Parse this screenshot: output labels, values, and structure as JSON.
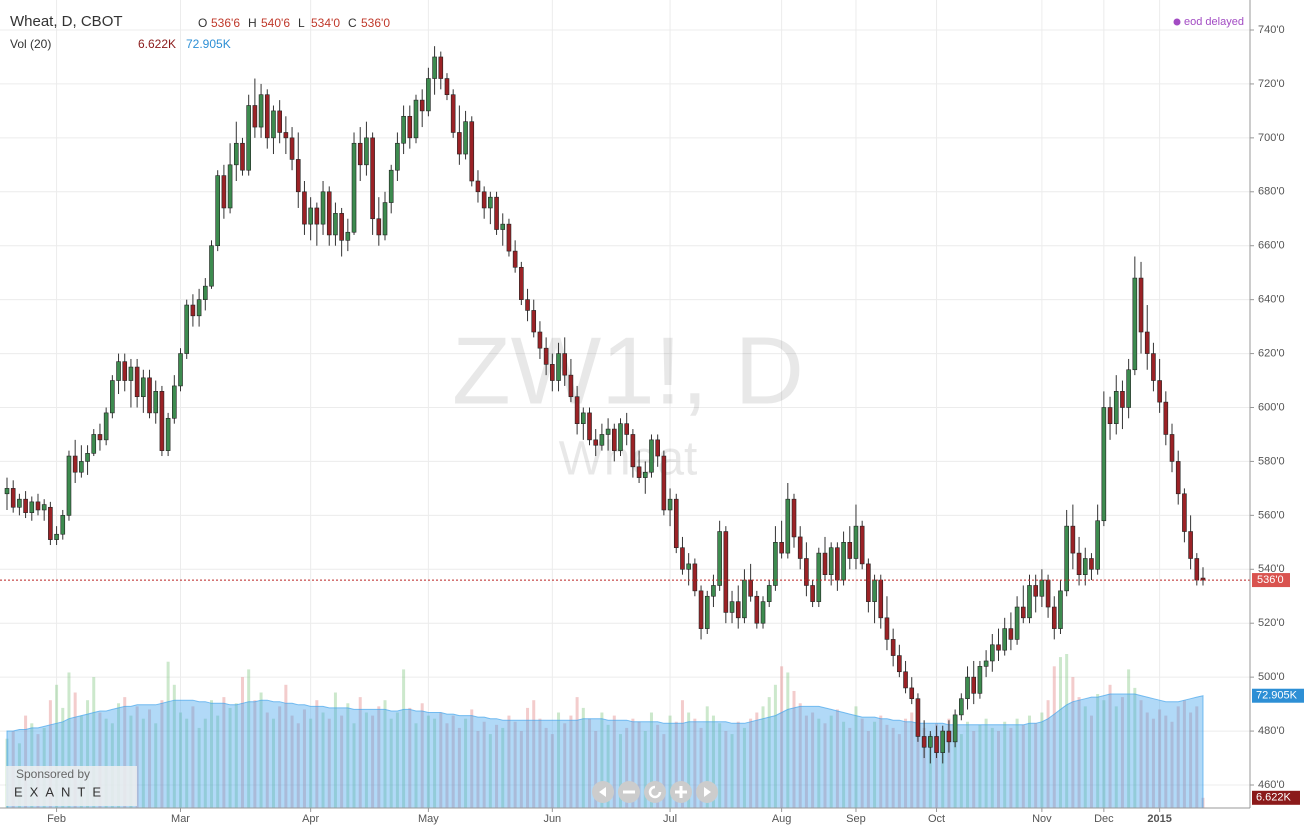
{
  "chart_data": {
    "type": "candlestick",
    "title": "Wheat, D, CBOT",
    "volume_title": "Vol (20)",
    "watermark": "ZW1!, D",
    "watermark_sub": "Wheat",
    "status": "eod delayed",
    "sponsor": {
      "caption": "Sponsored by",
      "name": "EXANTE"
    },
    "ohlc_names": [
      "O",
      "H",
      "L",
      "C"
    ],
    "last_labels": [
      "536'6",
      "540'6",
      "534'0",
      "536'0"
    ],
    "volume_last_label": "6.622K",
    "volume_ma_last_label": "72.905K",
    "up_color": "#3d8b4f",
    "down_color": "#9b2226",
    "ylim": [
      460,
      740
    ],
    "yticks": [
      {
        "value": 460,
        "label": "460'0"
      },
      {
        "value": 480,
        "label": "480'0"
      },
      {
        "value": 500,
        "label": "500'0"
      },
      {
        "value": 520,
        "label": "520'0"
      },
      {
        "value": 540,
        "label": "540'0"
      },
      {
        "value": 560,
        "label": "560'0"
      },
      {
        "value": 580,
        "label": "580'0"
      },
      {
        "value": 600,
        "label": "600'0"
      },
      {
        "value": 620,
        "label": "620'0"
      },
      {
        "value": 640,
        "label": "640'0"
      },
      {
        "value": 660,
        "label": "660'0"
      },
      {
        "value": 680,
        "label": "680'0"
      },
      {
        "value": 700,
        "label": "700'0"
      },
      {
        "value": 720,
        "label": "720'0"
      },
      {
        "value": 740,
        "label": "740'0"
      }
    ],
    "xticks": [
      {
        "value": 8,
        "label": "Feb"
      },
      {
        "value": 28,
        "label": "Mar"
      },
      {
        "value": 49,
        "label": "Apr"
      },
      {
        "value": 68,
        "label": "May"
      },
      {
        "value": 88,
        "label": "Jun"
      },
      {
        "value": 107,
        "label": "Jul"
      },
      {
        "value": 125,
        "label": "Aug"
      },
      {
        "value": 137,
        "label": "Sep"
      },
      {
        "value": 150,
        "label": "Oct"
      },
      {
        "value": 167,
        "label": "Nov"
      },
      {
        "value": 177,
        "label": "Dec"
      },
      {
        "value": 186,
        "label": "2015"
      }
    ],
    "grid": true,
    "volume_ylim": [
      0,
      100
    ],
    "ohlc": [
      [
        568,
        574,
        562,
        570
      ],
      [
        570,
        573,
        561,
        563
      ],
      [
        563,
        568,
        560,
        566
      ],
      [
        566,
        569,
        559,
        561
      ],
      [
        561,
        567,
        558,
        565
      ],
      [
        565,
        568,
        560,
        562
      ],
      [
        562,
        566,
        558,
        564
      ],
      [
        563,
        565,
        549,
        551
      ],
      [
        551,
        556,
        549,
        553
      ],
      [
        553,
        562,
        551,
        560
      ],
      [
        560,
        584,
        558,
        582
      ],
      [
        582,
        588,
        572,
        576
      ],
      [
        576,
        586,
        574,
        580
      ],
      [
        580,
        586,
        575,
        583
      ],
      [
        583,
        592,
        582,
        590
      ],
      [
        590,
        594,
        584,
        588
      ],
      [
        588,
        600,
        586,
        598
      ],
      [
        598,
        612,
        596,
        610
      ],
      [
        610,
        620,
        605,
        617
      ],
      [
        617,
        620,
        606,
        610
      ],
      [
        610,
        618,
        600,
        615
      ],
      [
        615,
        618,
        600,
        604
      ],
      [
        604,
        614,
        598,
        611
      ],
      [
        611,
        614,
        596,
        598
      ],
      [
        598,
        610,
        594,
        606
      ],
      [
        606,
        608,
        582,
        584
      ],
      [
        584,
        598,
        582,
        596
      ],
      [
        596,
        612,
        594,
        608
      ],
      [
        608,
        622,
        606,
        620
      ],
      [
        620,
        640,
        618,
        638
      ],
      [
        638,
        642,
        630,
        634
      ],
      [
        634,
        644,
        630,
        640
      ],
      [
        640,
        648,
        636,
        645
      ],
      [
        645,
        662,
        644,
        660
      ],
      [
        660,
        688,
        658,
        686
      ],
      [
        686,
        690,
        670,
        674
      ],
      [
        674,
        698,
        672,
        690
      ],
      [
        690,
        706,
        684,
        698
      ],
      [
        698,
        700,
        686,
        688
      ],
      [
        688,
        716,
        686,
        712
      ],
      [
        712,
        722,
        700,
        704
      ],
      [
        704,
        720,
        700,
        716
      ],
      [
        716,
        718,
        696,
        700
      ],
      [
        700,
        712,
        694,
        710
      ],
      [
        710,
        714,
        698,
        702
      ],
      [
        702,
        708,
        694,
        700
      ],
      [
        700,
        704,
        688,
        692
      ],
      [
        692,
        702,
        674,
        680
      ],
      [
        680,
        684,
        664,
        668
      ],
      [
        668,
        678,
        662,
        674
      ],
      [
        674,
        676,
        660,
        668
      ],
      [
        668,
        684,
        664,
        680
      ],
      [
        680,
        682,
        660,
        664
      ],
      [
        664,
        676,
        660,
        672
      ],
      [
        672,
        674,
        656,
        662
      ],
      [
        662,
        670,
        658,
        665
      ],
      [
        665,
        702,
        664,
        698
      ],
      [
        698,
        704,
        684,
        690
      ],
      [
        690,
        706,
        686,
        700
      ],
      [
        700,
        702,
        664,
        670
      ],
      [
        670,
        678,
        660,
        664
      ],
      [
        664,
        680,
        662,
        676
      ],
      [
        676,
        690,
        672,
        688
      ],
      [
        688,
        702,
        684,
        698
      ],
      [
        698,
        712,
        694,
        708
      ],
      [
        708,
        712,
        696,
        700
      ],
      [
        700,
        716,
        698,
        714
      ],
      [
        714,
        718,
        704,
        710
      ],
      [
        710,
        726,
        708,
        722
      ],
      [
        722,
        734,
        716,
        730
      ],
      [
        730,
        732,
        718,
        722
      ],
      [
        722,
        724,
        714,
        716
      ],
      [
        716,
        718,
        700,
        702
      ],
      [
        702,
        712,
        690,
        694
      ],
      [
        694,
        710,
        692,
        706
      ],
      [
        706,
        708,
        682,
        684
      ],
      [
        684,
        688,
        676,
        680
      ],
      [
        680,
        682,
        670,
        674
      ],
      [
        674,
        680,
        668,
        678
      ],
      [
        678,
        680,
        664,
        666
      ],
      [
        666,
        672,
        660,
        668
      ],
      [
        668,
        670,
        656,
        658
      ],
      [
        658,
        662,
        650,
        652
      ],
      [
        652,
        654,
        638,
        640
      ],
      [
        640,
        644,
        632,
        636
      ],
      [
        636,
        640,
        626,
        628
      ],
      [
        628,
        632,
        618,
        622
      ],
      [
        622,
        626,
        612,
        616
      ],
      [
        616,
        620,
        606,
        610
      ],
      [
        610,
        624,
        606,
        620
      ],
      [
        620,
        626,
        608,
        612
      ],
      [
        612,
        618,
        602,
        604
      ],
      [
        604,
        608,
        590,
        594
      ],
      [
        594,
        600,
        588,
        598
      ],
      [
        598,
        600,
        586,
        588
      ],
      [
        588,
        592,
        582,
        586
      ],
      [
        586,
        594,
        584,
        590
      ],
      [
        590,
        596,
        584,
        592
      ],
      [
        592,
        594,
        580,
        584
      ],
      [
        584,
        596,
        582,
        594
      ],
      [
        594,
        598,
        586,
        590
      ],
      [
        590,
        592,
        574,
        578
      ],
      [
        578,
        584,
        572,
        574
      ],
      [
        574,
        580,
        568,
        576
      ],
      [
        576,
        590,
        574,
        588
      ],
      [
        588,
        590,
        578,
        582
      ],
      [
        582,
        584,
        560,
        562
      ],
      [
        562,
        570,
        556,
        566
      ],
      [
        566,
        568,
        546,
        548
      ],
      [
        548,
        552,
        538,
        540
      ],
      [
        540,
        546,
        534,
        542
      ],
      [
        542,
        544,
        530,
        532
      ],
      [
        532,
        534,
        514,
        518
      ],
      [
        518,
        532,
        516,
        530
      ],
      [
        530,
        538,
        526,
        534
      ],
      [
        534,
        558,
        532,
        554
      ],
      [
        554,
        556,
        520,
        524
      ],
      [
        524,
        532,
        520,
        528
      ],
      [
        528,
        534,
        518,
        522
      ],
      [
        522,
        540,
        520,
        536
      ],
      [
        536,
        542,
        528,
        530
      ],
      [
        530,
        532,
        518,
        520
      ],
      [
        520,
        530,
        518,
        528
      ],
      [
        528,
        536,
        526,
        534
      ],
      [
        534,
        556,
        532,
        550
      ],
      [
        550,
        558,
        544,
        546
      ],
      [
        546,
        572,
        544,
        566
      ],
      [
        566,
        568,
        548,
        552
      ],
      [
        552,
        556,
        540,
        544
      ],
      [
        544,
        550,
        530,
        534
      ],
      [
        534,
        536,
        526,
        528
      ],
      [
        528,
        548,
        526,
        546
      ],
      [
        546,
        552,
        536,
        538
      ],
      [
        538,
        550,
        534,
        548
      ],
      [
        548,
        550,
        532,
        536
      ],
      [
        536,
        554,
        534,
        550
      ],
      [
        550,
        556,
        540,
        544
      ],
      [
        544,
        564,
        540,
        556
      ],
      [
        556,
        558,
        540,
        542
      ],
      [
        542,
        544,
        524,
        528
      ],
      [
        528,
        538,
        520,
        536
      ],
      [
        536,
        538,
        518,
        522
      ],
      [
        522,
        530,
        510,
        514
      ],
      [
        514,
        518,
        504,
        508
      ],
      [
        508,
        512,
        500,
        502
      ],
      [
        502,
        506,
        494,
        496
      ],
      [
        496,
        500,
        490,
        492
      ],
      [
        492,
        494,
        476,
        478
      ],
      [
        478,
        484,
        470,
        474
      ],
      [
        474,
        480,
        468,
        478
      ],
      [
        478,
        482,
        470,
        472
      ],
      [
        472,
        482,
        468,
        480
      ],
      [
        480,
        484,
        472,
        476
      ],
      [
        476,
        488,
        474,
        486
      ],
      [
        486,
        494,
        484,
        492
      ],
      [
        492,
        504,
        488,
        500
      ],
      [
        500,
        506,
        490,
        494
      ],
      [
        494,
        506,
        492,
        504
      ],
      [
        504,
        510,
        500,
        506
      ],
      [
        506,
        516,
        502,
        512
      ],
      [
        512,
        518,
        506,
        510
      ],
      [
        510,
        522,
        508,
        518
      ],
      [
        518,
        524,
        510,
        514
      ],
      [
        514,
        530,
        512,
        526
      ],
      [
        526,
        534,
        520,
        522
      ],
      [
        522,
        538,
        520,
        534
      ],
      [
        534,
        538,
        524,
        530
      ],
      [
        530,
        540,
        526,
        536
      ],
      [
        536,
        538,
        522,
        526
      ],
      [
        526,
        530,
        514,
        518
      ],
      [
        518,
        536,
        516,
        532
      ],
      [
        532,
        562,
        530,
        556
      ],
      [
        556,
        564,
        540,
        546
      ],
      [
        546,
        552,
        534,
        538
      ],
      [
        538,
        548,
        534,
        544
      ],
      [
        544,
        546,
        536,
        540
      ],
      [
        540,
        564,
        538,
        558
      ],
      [
        558,
        606,
        556,
        600
      ],
      [
        600,
        604,
        588,
        594
      ],
      [
        594,
        612,
        590,
        606
      ],
      [
        606,
        610,
        592,
        600
      ],
      [
        600,
        618,
        596,
        614
      ],
      [
        614,
        656,
        612,
        648
      ],
      [
        648,
        654,
        620,
        628
      ],
      [
        628,
        638,
        614,
        620
      ],
      [
        620,
        624,
        606,
        610
      ],
      [
        610,
        618,
        598,
        602
      ],
      [
        602,
        606,
        586,
        590
      ],
      [
        590,
        594,
        576,
        580
      ],
      [
        580,
        584,
        564,
        568
      ],
      [
        568,
        570,
        550,
        554
      ],
      [
        554,
        560,
        540,
        544
      ],
      [
        544,
        546,
        534,
        536
      ],
      [
        536.75,
        540.75,
        534,
        536
      ]
    ],
    "volume": [
      45,
      50,
      42,
      60,
      55,
      48,
      52,
      70,
      80,
      65,
      88,
      75,
      60,
      70,
      85,
      62,
      58,
      55,
      68,
      72,
      60,
      66,
      58,
      64,
      55,
      70,
      95,
      80,
      62,
      58,
      66,
      52,
      58,
      70,
      60,
      72,
      65,
      68,
      85,
      90,
      70,
      75,
      62,
      58,
      66,
      80,
      60,
      55,
      64,
      58,
      70,
      62,
      58,
      75,
      60,
      68,
      55,
      72,
      62,
      60,
      66,
      70,
      58,
      62,
      90,
      65,
      55,
      68,
      60,
      58,
      62,
      55,
      60,
      52,
      58,
      64,
      50,
      56,
      48,
      54,
      52,
      60,
      56,
      50,
      65,
      70,
      58,
      52,
      48,
      62,
      55,
      60,
      72,
      65,
      58,
      50,
      62,
      54,
      60,
      48,
      52,
      58,
      56,
      50,
      62,
      54,
      48,
      60,
      56,
      70,
      62,
      58,
      52,
      66,
      60,
      55,
      50,
      48,
      56,
      52,
      58,
      62,
      66,
      72,
      80,
      92,
      88,
      76,
      68,
      60,
      62,
      58,
      55,
      60,
      64,
      56,
      52,
      66,
      58,
      50,
      56,
      60,
      54,
      52,
      48,
      58,
      62,
      55,
      52,
      48,
      55,
      50,
      58,
      52,
      48,
      56,
      50,
      54,
      58,
      52,
      50,
      56,
      52,
      58,
      54,
      60,
      55,
      62,
      70,
      92,
      98,
      100,
      85,
      72,
      66,
      60,
      74,
      70,
      80,
      66,
      72,
      90,
      78,
      70,
      62,
      58,
      64,
      60,
      56,
      66,
      70,
      62,
      66,
      6.622
    ],
    "volume_ma": [
      50,
      50,
      51,
      51,
      52,
      52,
      53,
      54,
      55,
      56,
      58,
      59,
      60,
      61,
      62,
      63,
      63,
      64,
      65,
      66,
      66,
      67,
      67,
      67,
      67,
      68,
      69,
      70,
      70,
      70,
      70,
      69,
      69,
      68,
      68,
      68,
      67,
      67,
      68,
      69,
      69,
      70,
      70,
      69,
      69,
      68,
      68,
      67,
      67,
      66,
      66,
      66,
      65,
      65,
      65,
      65,
      64,
      64,
      64,
      64,
      64,
      64,
      63,
      63,
      64,
      64,
      63,
      63,
      62,
      62,
      62,
      61,
      61,
      60,
      60,
      60,
      59,
      59,
      58,
      58,
      57,
      57,
      57,
      57,
      57,
      57,
      57,
      57,
      57,
      57,
      57,
      57,
      57,
      58,
      58,
      58,
      58,
      57,
      57,
      57,
      57,
      56,
      56,
      56,
      56,
      56,
      55,
      55,
      55,
      55,
      56,
      56,
      56,
      56,
      56,
      56,
      56,
      55,
      55,
      55,
      56,
      57,
      58,
      59,
      60,
      62,
      64,
      65,
      66,
      66,
      66,
      66,
      65,
      64,
      63,
      62,
      61,
      60,
      59,
      59,
      59,
      58,
      58,
      57,
      57,
      56,
      56,
      55,
      55,
      55,
      55,
      55,
      54,
      54,
      54,
      54,
      54,
      54,
      54,
      54,
      54,
      54,
      54,
      54,
      54,
      55,
      55,
      56,
      58,
      61,
      64,
      67,
      69,
      70,
      71,
      72,
      72,
      73,
      74,
      74,
      74,
      74,
      74,
      73,
      72,
      71,
      70,
      69,
      69,
      69,
      70,
      71,
      72,
      72.905
    ]
  }
}
